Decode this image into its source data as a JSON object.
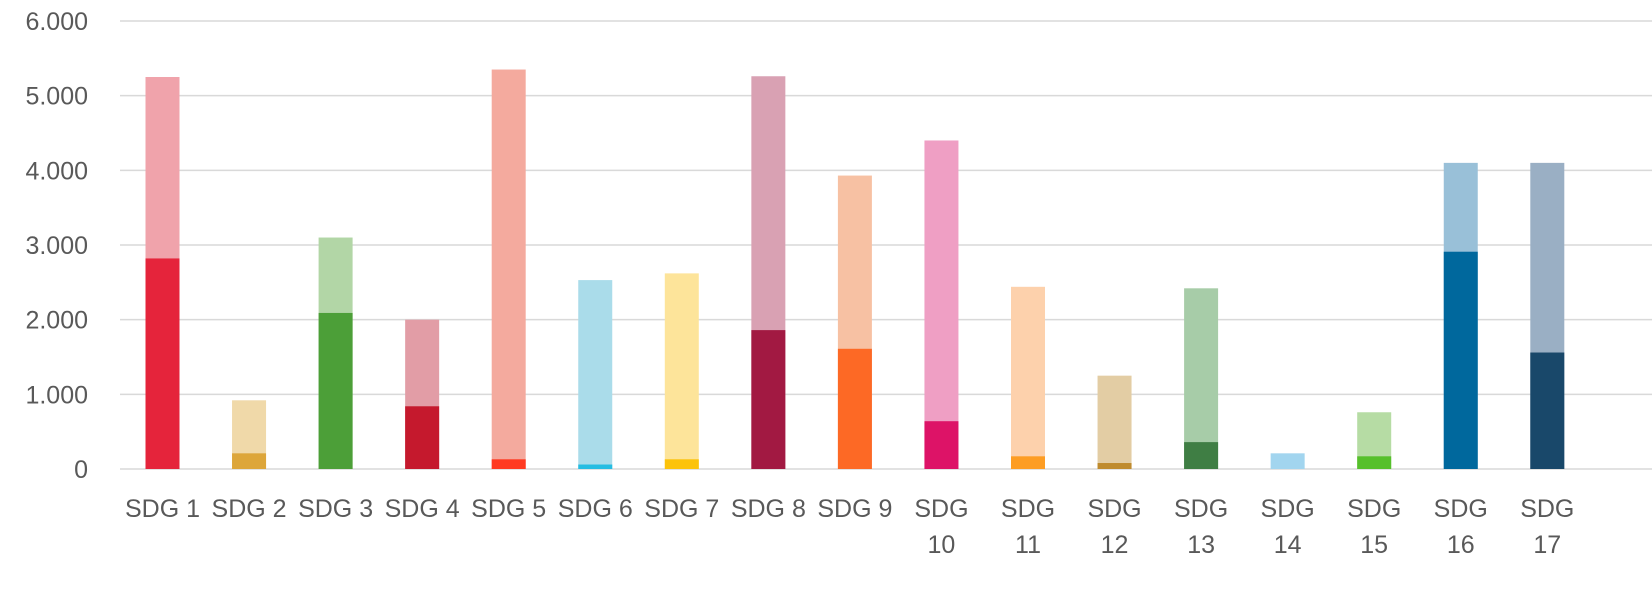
{
  "chart_data": {
    "type": "bar",
    "stacked_overlay": true,
    "title": "",
    "xlabel": "",
    "ylabel": "",
    "ylim": [
      0,
      6000
    ],
    "y_ticks": [
      "0",
      "1.000",
      "2.000",
      "3.000",
      "4.000",
      "5.000",
      "6.000"
    ],
    "grid": true,
    "categories": [
      [
        "SDG 1"
      ],
      [
        "SDG 2"
      ],
      [
        "SDG 3"
      ],
      [
        "SDG 4"
      ],
      [
        "SDG 5"
      ],
      [
        "SDG 6"
      ],
      [
        "SDG 7"
      ],
      [
        "SDG 8"
      ],
      [
        "SDG 9"
      ],
      [
        "SDG",
        "10"
      ],
      [
        "SDG",
        "11"
      ],
      [
        "SDG",
        "12"
      ],
      [
        "SDG",
        "13"
      ],
      [
        "SDG",
        "14"
      ],
      [
        "SDG",
        "15"
      ],
      [
        "SDG",
        "16"
      ],
      [
        "SDG",
        "17"
      ]
    ],
    "series": [
      {
        "values": [
          5250,
          920,
          3100,
          2000,
          5350,
          2530,
          2620,
          5260,
          3930,
          4400,
          2440,
          1250,
          2420,
          210,
          760,
          4100,
          4100
        ]
      },
      {
        "values": [
          2820,
          210,
          2090,
          840,
          130,
          60,
          130,
          1860,
          1610,
          640,
          170,
          80,
          360,
          0,
          170,
          2910,
          1560
        ]
      }
    ],
    "colors": {
      "dark": [
        "#e5243b",
        "#dda63a",
        "#4c9f38",
        "#c5192d",
        "#ff3a21",
        "#26bde2",
        "#fcc30b",
        "#a21942",
        "#fd6925",
        "#dd1367",
        "#fd9d24",
        "#bf8b2e",
        "#3f7e44",
        "#0a97d9",
        "#56c02b",
        "#00689d",
        "#19486a"
      ],
      "light": [
        "#f0a3ab",
        "#f0d9a9",
        "#b2d6a6",
        "#e29da6",
        "#f4aa9e",
        "#aadcea",
        "#fde49a",
        "#d9a1b3",
        "#f7c1a3",
        "#ef9fc4",
        "#fdd1ac",
        "#e3cda4",
        "#a7cca8",
        "#a2d5ef",
        "#b6dca4",
        "#99c0d8",
        "#9aafc4"
      ]
    }
  }
}
